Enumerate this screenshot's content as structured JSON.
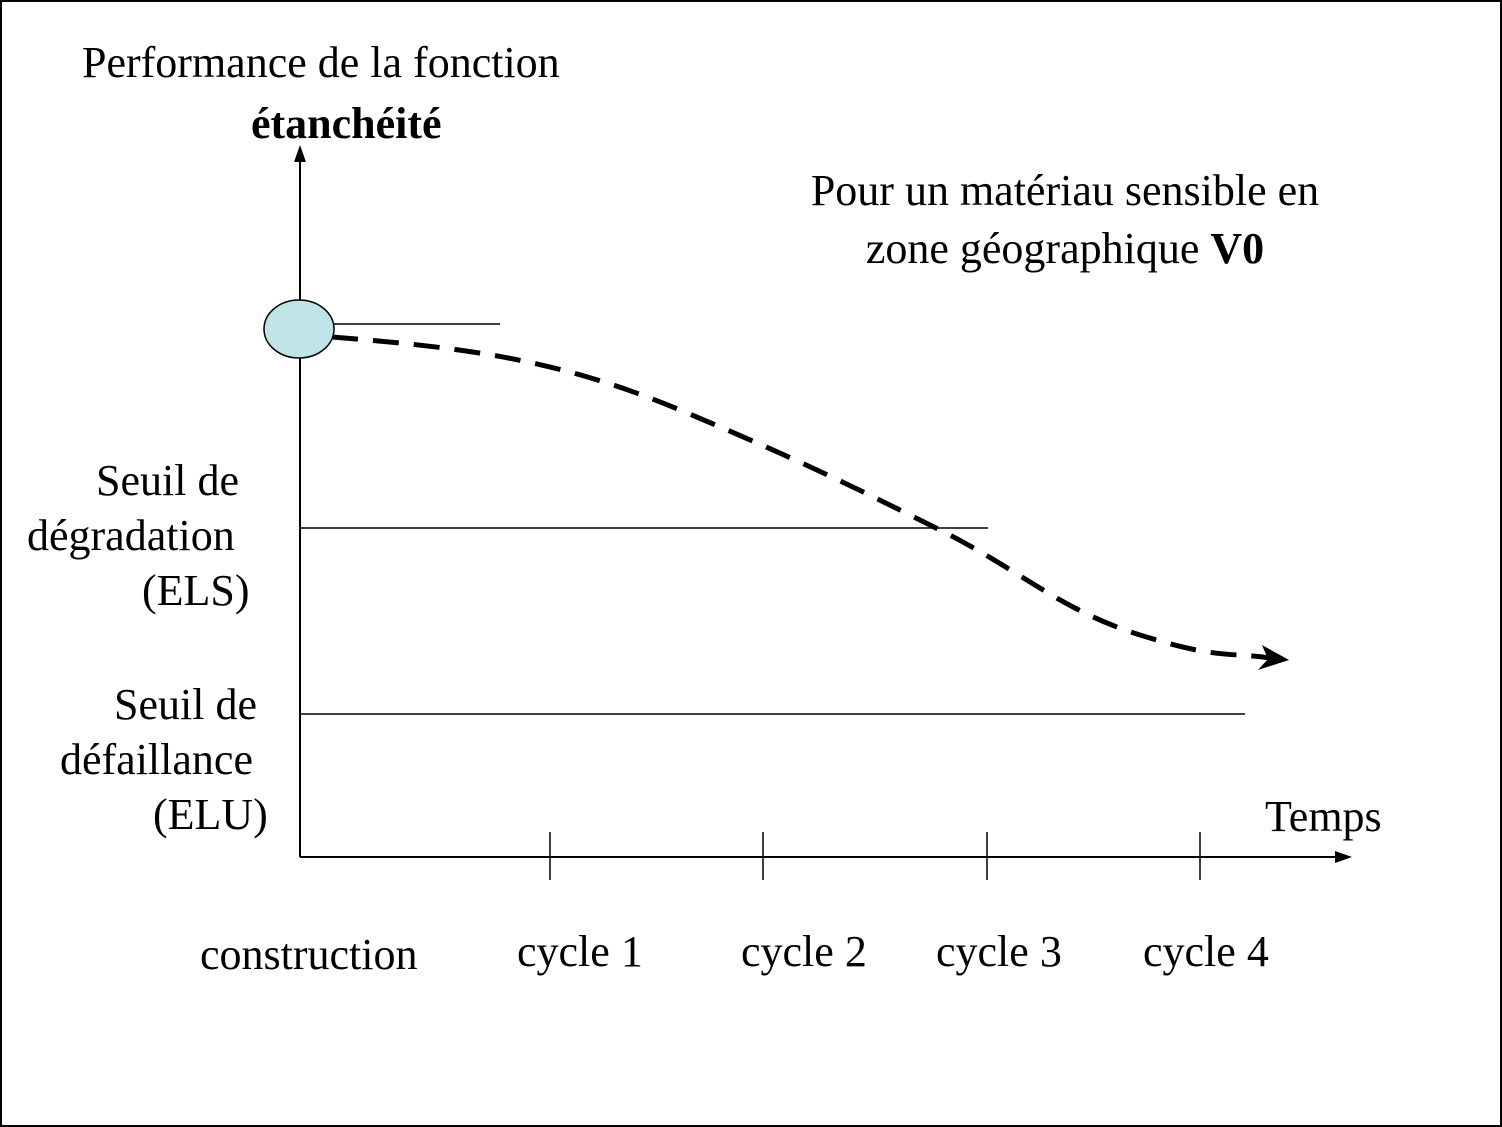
{
  "y_axis": {
    "title_line1": "Performance de la fonction",
    "title_line2": "étanchéité"
  },
  "annotation": {
    "line1": "Pour un matériau sensible en",
    "line2_text": "zone géographique ",
    "line2_bold": "V0"
  },
  "thresholds": {
    "els": {
      "line1": "Seuil de",
      "line2": "dégradation",
      "line3": "(ELS)"
    },
    "elu": {
      "line1": "Seuil de",
      "line2": "défaillance",
      "line3": "(ELU)"
    }
  },
  "x_axis": {
    "title": "Temps",
    "labels": [
      "construction",
      "cycle 1",
      "cycle 2",
      "cycle 3",
      "cycle 4"
    ]
  },
  "colors": {
    "marker_fill": "#bfe3e6",
    "line": "#000000"
  }
}
